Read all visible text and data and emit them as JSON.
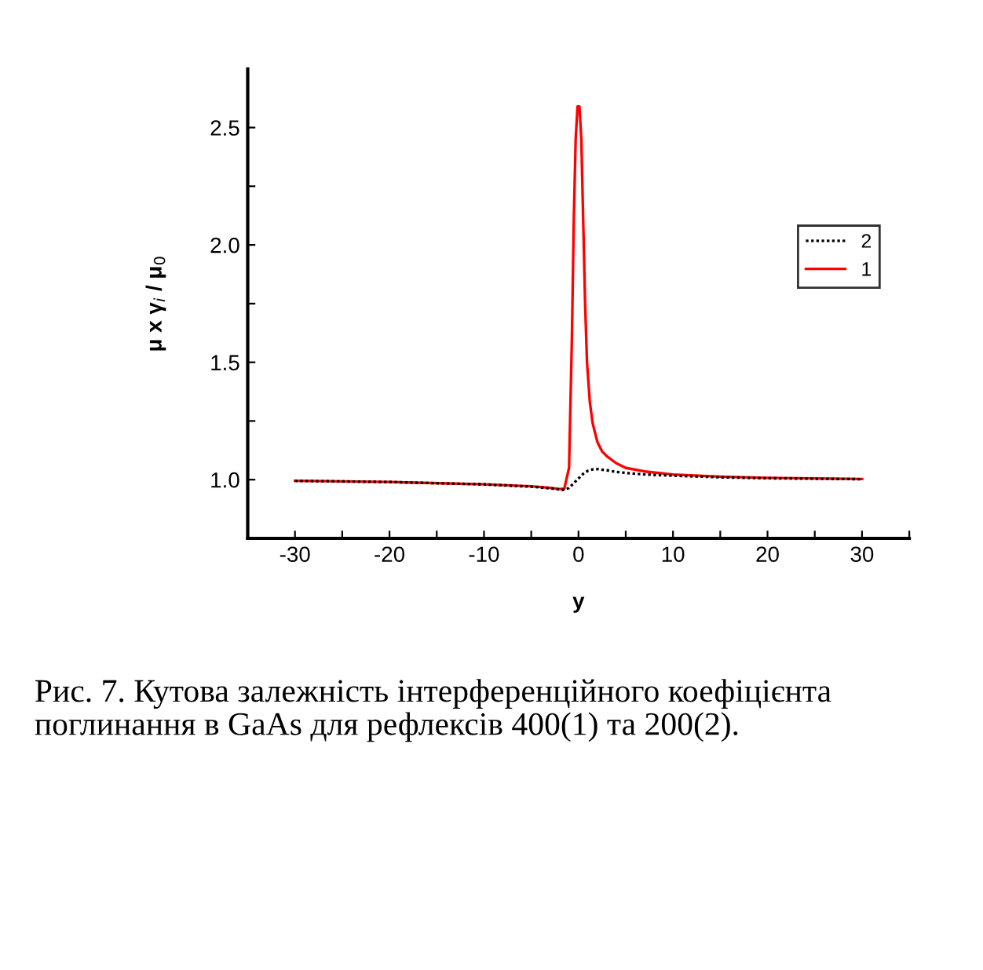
{
  "chart_data": {
    "type": "line",
    "xlabel": "y",
    "ylabel": "μ x γ$_{i}$ / μ$_{0}$",
    "xlim": [
      -35,
      35
    ],
    "ylim": [
      0.75,
      2.75
    ],
    "xticks": [
      -30,
      {
        "value": -25,
        "label": null
      },
      -20,
      {
        "value": -15,
        "label": null
      },
      -10,
      {
        "value": -5,
        "label": null
      },
      0,
      {
        "value": 5,
        "label": null
      },
      10,
      {
        "value": 15,
        "label": null
      },
      20,
      {
        "value": 25,
        "label": null
      },
      30,
      {
        "value": 35,
        "label": null
      }
    ],
    "yticks": [
      {
        "value": 1,
        "label": "1.0"
      },
      {
        "value": 1.25,
        "label": null
      },
      1.5,
      {
        "value": 1.75,
        "label": null
      },
      {
        "value": 2,
        "label": "2.0"
      },
      {
        "value": 2.25,
        "label": null
      },
      2.5
    ],
    "grid": false,
    "legend": "right",
    "series": [
      {
        "name": "2",
        "color": "#000000",
        "line_style": "dotted",
        "x": [
          -30,
          -20,
          -10,
          -5,
          -3,
          -2,
          -1.5,
          -1,
          -0.5,
          0,
          0.5,
          1,
          1.5,
          2,
          3,
          4,
          6,
          8,
          10,
          15,
          20,
          25,
          30
        ],
        "values": [
          0.995,
          0.99,
          0.98,
          0.97,
          0.963,
          0.958,
          0.956,
          0.965,
          0.985,
          1.005,
          1.025,
          1.038,
          1.044,
          1.045,
          1.04,
          1.033,
          1.025,
          1.02,
          1.017,
          1.01,
          1.006,
          1.004,
          1.002
        ]
      },
      {
        "name": "1",
        "color": "#ff0000",
        "line_style": "solid",
        "x": [
          -30,
          -20,
          -10,
          -5,
          -3,
          -2,
          -1.5,
          -1,
          -0.7,
          -0.5,
          -0.3,
          -0.1,
          0.1,
          0.3,
          0.5,
          0.7,
          0.9,
          1.2,
          1.5,
          2,
          2.5,
          3,
          4,
          5,
          7,
          10,
          15,
          20,
          25,
          30
        ],
        "values": [
          0.995,
          0.99,
          0.98,
          0.972,
          0.965,
          0.96,
          0.962,
          1.05,
          1.6,
          2.1,
          2.45,
          2.59,
          2.59,
          2.45,
          2.1,
          1.75,
          1.5,
          1.33,
          1.24,
          1.16,
          1.12,
          1.1,
          1.07,
          1.05,
          1.035,
          1.022,
          1.013,
          1.008,
          1.005,
          1.003
        ]
      }
    ],
    "annotations": [
      "Рис. 7. Кутова залежність інтерференційного коефіцієнта поглинання в GaAs для рефлексів 400(1) та 200(2)."
    ]
  }
}
